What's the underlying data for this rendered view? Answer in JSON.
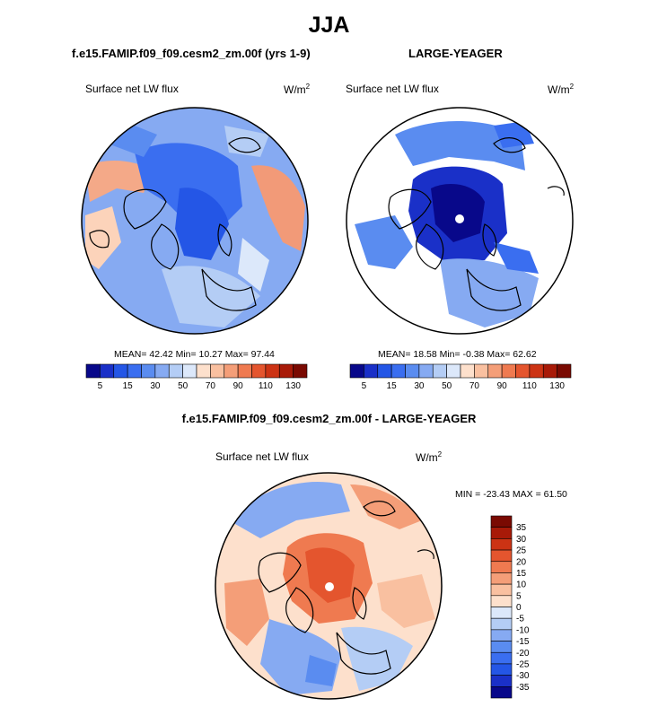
{
  "title": "JJA",
  "panels": [
    {
      "id": "model",
      "title": "f.e15.FAMIP.f09_f09.cesm2_zm.00f (yrs 1-9)",
      "variable": "Surface net LW flux",
      "units_base": "W/m",
      "units_exp": "2",
      "stats": "MEAN= 42.42  Min= 10.27  Max= 97.44"
    },
    {
      "id": "obs",
      "title": "LARGE-YEAGER",
      "variable": "Surface net LW flux",
      "units_base": "W/m",
      "units_exp": "2",
      "stats": "MEAN= 18.58  Min= -0.38  Max= 62.62"
    },
    {
      "id": "diff",
      "title": "f.e15.FAMIP.f09_f09.cesm2_zm.00f - LARGE-YEAGER",
      "variable": "Surface net LW flux",
      "units_base": "W/m",
      "units_exp": "2",
      "stats": "MIN = -23.43 MAX =  61.50"
    }
  ],
  "chart_data": [
    {
      "type": "heatmap",
      "projection": "north polar stereographic",
      "title": "f.e15.FAMIP.f09_f09.cesm2_zm.00f (yrs 1-9)",
      "variable": "Surface net LW flux",
      "units": "W/m2",
      "mean": 42.42,
      "min": 10.27,
      "max": 97.44,
      "colorbar": {
        "levels": [
          5,
          10,
          15,
          20,
          30,
          40,
          50,
          60,
          70,
          80,
          90,
          100,
          110,
          120,
          130
        ],
        "tick_labels": [
          "5",
          "15",
          "30",
          "50",
          "70",
          "90",
          "110",
          "130"
        ],
        "colors": [
          "#08088a",
          "#1a30c8",
          "#2456e6",
          "#3a6ef0",
          "#5a8cf0",
          "#86aaf2",
          "#b4cdf5",
          "#dce8fa",
          "#fde0cc",
          "#f9c0a0",
          "#f49e78",
          "#ef7a50",
          "#e4552e",
          "#cc3314",
          "#a81a08",
          "#7a0a02"
        ]
      }
    },
    {
      "type": "heatmap",
      "projection": "north polar stereographic",
      "title": "LARGE-YEAGER",
      "variable": "Surface net LW flux",
      "units": "W/m2",
      "mean": 18.58,
      "min": -0.38,
      "max": 62.62,
      "colorbar": {
        "levels": [
          5,
          10,
          15,
          20,
          30,
          40,
          50,
          60,
          70,
          80,
          90,
          100,
          110,
          120,
          130
        ],
        "tick_labels": [
          "5",
          "15",
          "30",
          "50",
          "70",
          "90",
          "110",
          "130"
        ],
        "colors": [
          "#08088a",
          "#1a30c8",
          "#2456e6",
          "#3a6ef0",
          "#5a8cf0",
          "#86aaf2",
          "#b4cdf5",
          "#dce8fa",
          "#fde0cc",
          "#f9c0a0",
          "#f49e78",
          "#ef7a50",
          "#e4552e",
          "#cc3314",
          "#a81a08",
          "#7a0a02"
        ]
      }
    },
    {
      "type": "heatmap",
      "projection": "north polar stereographic",
      "title": "f.e15.FAMIP.f09_f09.cesm2_zm.00f - LARGE-YEAGER",
      "variable": "Surface net LW flux",
      "units": "W/m2",
      "min": -23.43,
      "max": 61.5,
      "colorbar": {
        "orientation": "vertical",
        "levels": [
          35,
          30,
          25,
          20,
          15,
          10,
          5,
          0,
          -5,
          -10,
          -15,
          -20,
          -25,
          -30,
          -35
        ],
        "tick_labels": [
          "35",
          "30",
          "25",
          "20",
          "15",
          "10",
          "5",
          "0",
          "-5",
          "-10",
          "-15",
          "-20",
          "-25",
          "-30",
          "-35"
        ],
        "colors": [
          "#7a0a02",
          "#a81a08",
          "#cc3314",
          "#e4552e",
          "#ef7a50",
          "#f49e78",
          "#f9c0a0",
          "#fde0cc",
          "#dce8fa",
          "#b4cdf5",
          "#86aaf2",
          "#5a8cf0",
          "#3a6ef0",
          "#2456e6",
          "#1a30c8",
          "#08088a"
        ]
      }
    }
  ]
}
